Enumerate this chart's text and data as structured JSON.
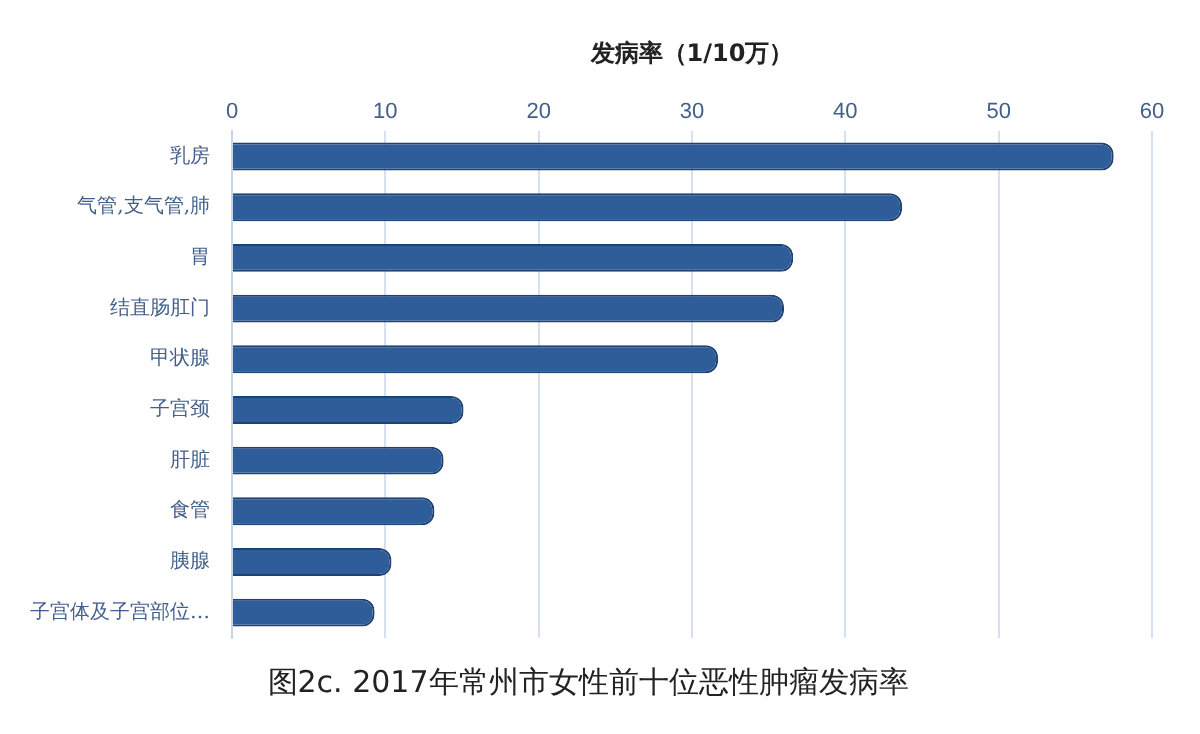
{
  "chart_data": {
    "type": "bar",
    "orientation": "horizontal",
    "title": "图2c. 2017年常州市女性前十位恶性肿瘤发病率",
    "xlabel": "发病率（1/10万）",
    "categories": [
      "乳房",
      "气管,支气管,肺",
      "胃",
      "结直肠肛门",
      "甲状腺",
      "子宫颈",
      "肝脏",
      "食管",
      "胰腺",
      "子宫体及子宫部位…"
    ],
    "values": [
      57.5,
      43.7,
      36.6,
      36,
      31.7,
      15.1,
      13.8,
      13.2,
      10.4,
      9.3
    ],
    "color": "#2e5d9a",
    "xlim": [
      0,
      60
    ],
    "xticks": [
      0,
      10,
      20,
      30,
      40,
      50,
      60
    ],
    "grid": "x",
    "legend": false
  }
}
